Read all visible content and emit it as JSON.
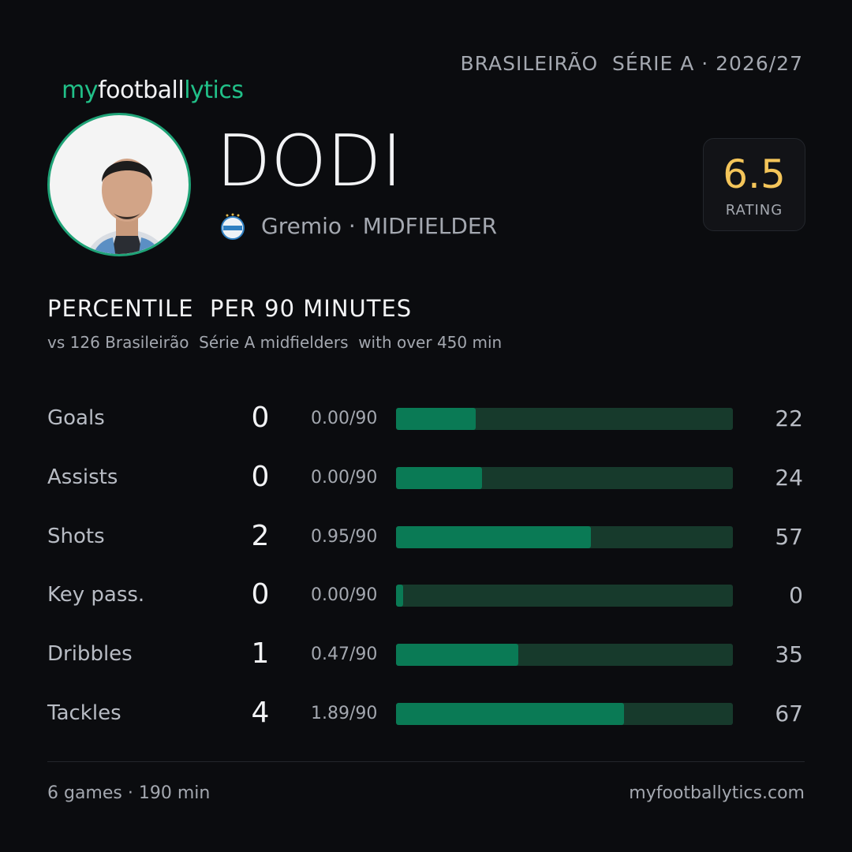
{
  "header": {
    "brand": [
      "my",
      "football",
      "lytics"
    ],
    "competition": "BRASILEIRÃO  SÉRIE A · 2026/27"
  },
  "player": {
    "name": "DODI",
    "subtitle": "Gremio · MIDFIELDER",
    "rating": 6.5,
    "rating_label": "RATING"
  },
  "section": {
    "title": "PERCENTILE  PER 90 MINUTES",
    "subtitle": "vs 126 Brasileirão  Série A midfielders  with over 450 min"
  },
  "stats": [
    {
      "label": "Goals",
      "total": 0,
      "per90": "0.00/90",
      "percentile": 22
    },
    {
      "label": "Assists",
      "total": 0,
      "per90": "0.00/90",
      "percentile": 24
    },
    {
      "label": "Shots",
      "total": 2,
      "per90": "0.95/90",
      "percentile": 57
    },
    {
      "label": "Key pass.",
      "total": 0,
      "per90": "0.00/90",
      "percentile": 0
    },
    {
      "label": "Dribbles",
      "total": 1,
      "per90": "0.47/90",
      "percentile": 35
    },
    {
      "label": "Tackles",
      "total": 4,
      "per90": "1.89/90",
      "percentile": 67
    }
  ],
  "footer": {
    "left": "6 games · 190 min",
    "right": "myfootballytics.com"
  }
}
